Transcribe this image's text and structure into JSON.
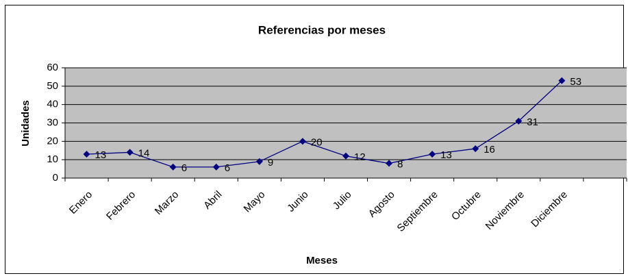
{
  "chart_data": {
    "type": "line",
    "title": "Referencias por meses",
    "x_label": "Meses",
    "y_label": "Unidades",
    "categories": [
      "Enero",
      "Febrero",
      "Marzo",
      "Abril",
      "Mayo",
      "Junio",
      "Julio",
      "Agosto",
      "Septiembre",
      "Octubre",
      "Noviembre",
      "Diciembre",
      null
    ],
    "values": [
      13,
      14,
      6,
      6,
      9,
      20,
      12,
      8,
      13,
      16,
      31,
      53,
      null
    ],
    "color": "#000080",
    "ylim": [
      0,
      60
    ],
    "yticks": [
      0,
      10,
      20,
      30,
      40,
      50,
      60
    ],
    "grid": true
  }
}
